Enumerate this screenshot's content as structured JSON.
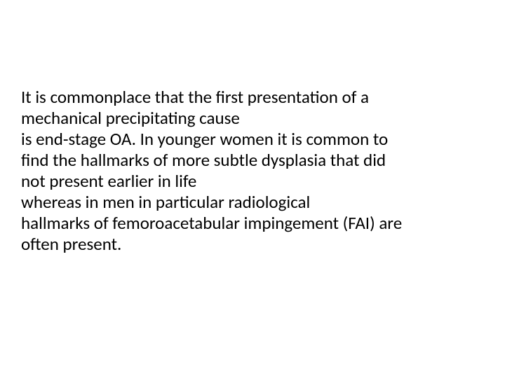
{
  "slide": {
    "background_color": "#ffffff",
    "text_color": "#000000",
    "font_family": "Calibri, 'Segoe UI', Arial, sans-serif",
    "font_size_pt": 19,
    "lines": [
      "It is commonplace that the first presentation of a",
      " mechanical precipitating cause",
      " is end-stage OA. In younger women it is common to",
      "find the hallmarks of more subtle dysplasia that did",
      " not present earlier in life",
      "  whereas in men in particular radiological",
      "hallmarks of femoroacetabular impingement (FAI) are",
      "often present."
    ]
  }
}
